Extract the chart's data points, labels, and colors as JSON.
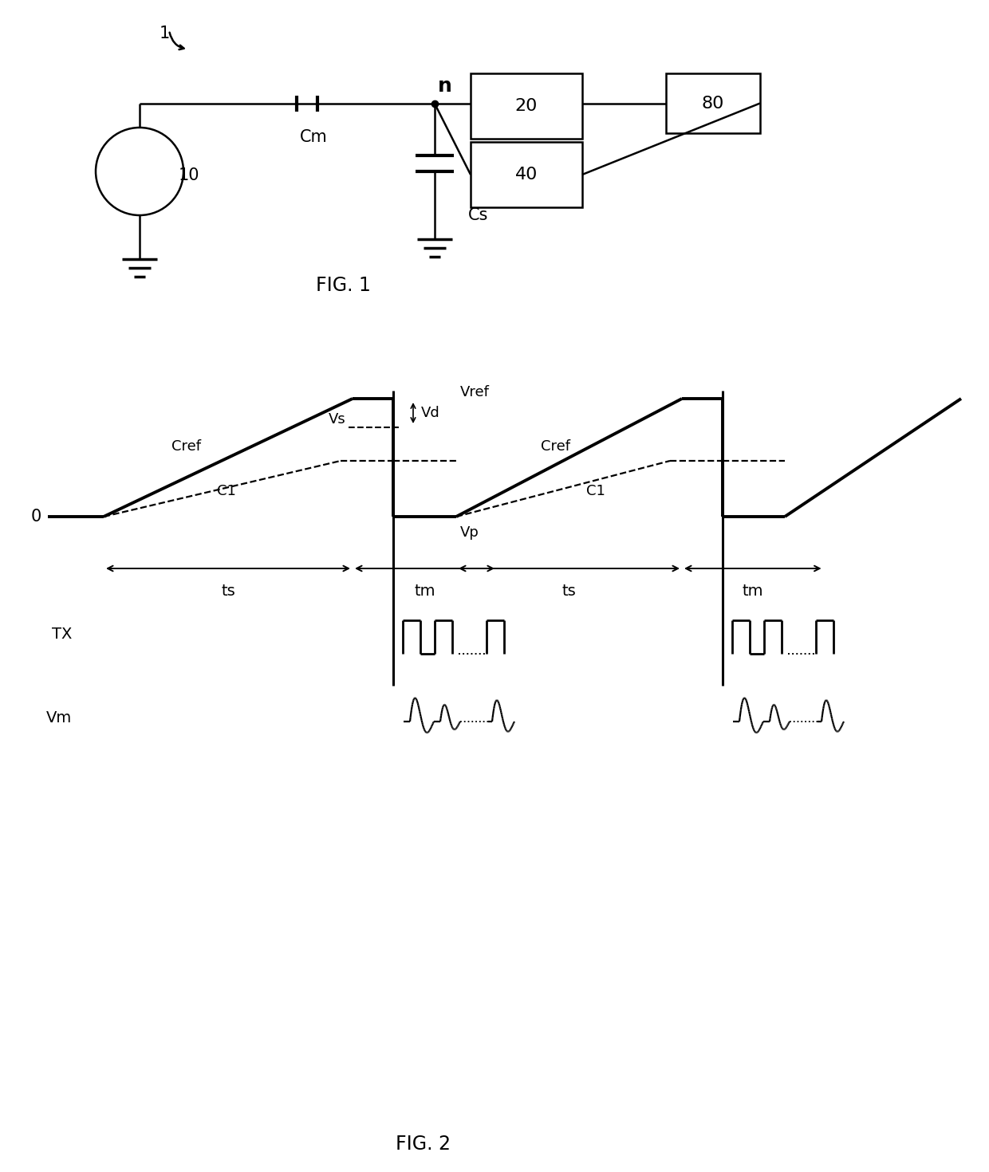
{
  "fig_width": 12.4,
  "fig_height": 14.7,
  "bg_color": "#ffffff",
  "line_color": "#000000",
  "fig1_label": "FIG. 1",
  "fig2_label": "FIG. 2",
  "circuit_label_1": "1",
  "node_label": "n",
  "cm_label": "Cm",
  "cs_label": "Cs",
  "src_label": "10",
  "box20_label": "20",
  "box40_label": "40",
  "box80_label": "80"
}
